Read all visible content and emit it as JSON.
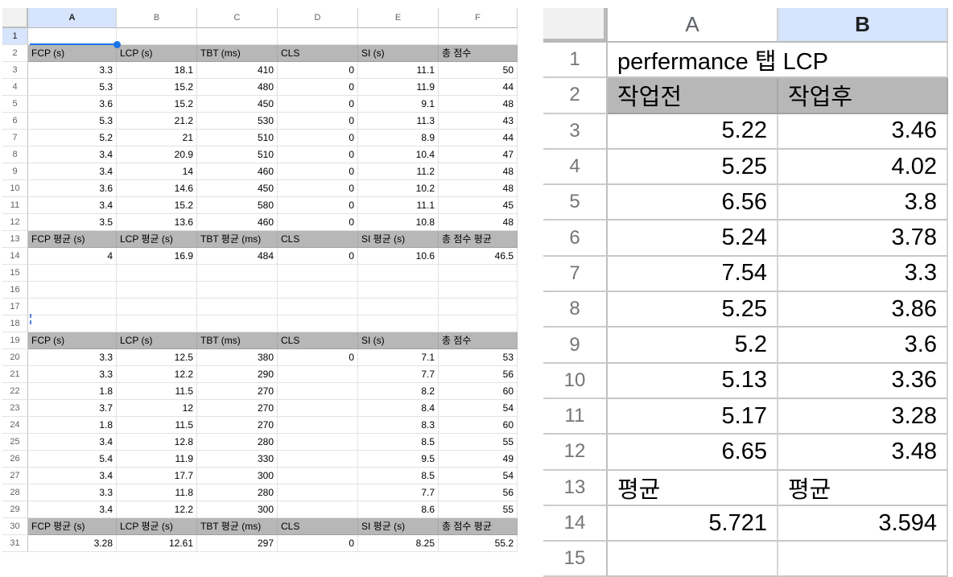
{
  "accent": {
    "selection_blue": "#1a73e8",
    "selected_header_bg": "#d6e4fc",
    "gray_header_bg": "#b7b7b7"
  },
  "left_sheet": {
    "columns": [
      "A",
      "B",
      "C",
      "D",
      "E",
      "F"
    ],
    "selected_column": "A",
    "selected_row": "1",
    "rows": [
      {
        "n": "1",
        "c": [
          "",
          "",
          "",
          "",
          "",
          ""
        ],
        "selRow": true
      },
      {
        "n": "2",
        "c": [
          "FCP (s)",
          "LCP (s)",
          "TBT (ms)",
          "CLS",
          "SI (s)",
          "총 점수"
        ],
        "h": true
      },
      {
        "n": "3",
        "c": [
          "3.3",
          "18.1",
          "410",
          "0",
          "11.1",
          "50"
        ]
      },
      {
        "n": "4",
        "c": [
          "5.3",
          "15.2",
          "480",
          "0",
          "11.9",
          "44"
        ]
      },
      {
        "n": "5",
        "c": [
          "3.6",
          "15.2",
          "450",
          "0",
          "9.1",
          "48"
        ]
      },
      {
        "n": "6",
        "c": [
          "5.3",
          "21.2",
          "530",
          "0",
          "11.3",
          "43"
        ]
      },
      {
        "n": "7",
        "c": [
          "5.2",
          "21",
          "510",
          "0",
          "8.9",
          "44"
        ]
      },
      {
        "n": "8",
        "c": [
          "3.4",
          "20.9",
          "510",
          "0",
          "10.4",
          "47"
        ]
      },
      {
        "n": "9",
        "c": [
          "3.4",
          "14",
          "460",
          "0",
          "11.2",
          "48"
        ]
      },
      {
        "n": "10",
        "c": [
          "3.6",
          "14.6",
          "450",
          "0",
          "10.2",
          "48"
        ]
      },
      {
        "n": "11",
        "c": [
          "3.4",
          "15.2",
          "580",
          "0",
          "11.1",
          "45"
        ]
      },
      {
        "n": "12",
        "c": [
          "3.5",
          "13.6",
          "460",
          "0",
          "10.8",
          "48"
        ]
      },
      {
        "n": "13",
        "c": [
          "FCP 평균 (s)",
          "LCP 평균 (s)",
          "TBT 평균 (ms)",
          "CLS",
          "SI 평균 (s)",
          "총 점수 평균"
        ],
        "h": true
      },
      {
        "n": "14",
        "c": [
          "4",
          "16.9",
          "484",
          "0",
          "10.6",
          "46.5"
        ]
      },
      {
        "n": "15",
        "c": [
          "",
          "",
          "",
          "",
          "",
          ""
        ]
      },
      {
        "n": "16",
        "c": [
          "",
          "",
          "",
          "",
          "",
          ""
        ]
      },
      {
        "n": "17",
        "c": [
          "",
          "",
          "",
          "",
          "",
          ""
        ]
      },
      {
        "n": "18",
        "c": [
          "",
          "",
          "",
          "",
          "",
          ""
        ],
        "cursor": true
      },
      {
        "n": "19",
        "c": [
          "FCP (s)",
          "LCP (s)",
          "TBT (ms)",
          "CLS",
          "SI (s)",
          "총 점수"
        ],
        "h": true
      },
      {
        "n": "20",
        "c": [
          "3.3",
          "12.5",
          "380",
          "0",
          "7.1",
          "53"
        ]
      },
      {
        "n": "21",
        "c": [
          "3.3",
          "12.2",
          "290",
          "",
          "7.7",
          "56"
        ]
      },
      {
        "n": "22",
        "c": [
          "1.8",
          "11.5",
          "270",
          "",
          "8.2",
          "60"
        ]
      },
      {
        "n": "23",
        "c": [
          "3.7",
          "12",
          "270",
          "",
          "8.4",
          "54"
        ]
      },
      {
        "n": "24",
        "c": [
          "1.8",
          "11.5",
          "270",
          "",
          "8.3",
          "60"
        ]
      },
      {
        "n": "25",
        "c": [
          "3.4",
          "12.8",
          "280",
          "",
          "8.5",
          "55"
        ]
      },
      {
        "n": "26",
        "c": [
          "5.4",
          "11.9",
          "330",
          "",
          "9.5",
          "49"
        ]
      },
      {
        "n": "27",
        "c": [
          "3.4",
          "17.7",
          "300",
          "",
          "8.5",
          "54"
        ]
      },
      {
        "n": "28",
        "c": [
          "3.3",
          "11.8",
          "280",
          "",
          "7.7",
          "56"
        ]
      },
      {
        "n": "29",
        "c": [
          "3.4",
          "12.2",
          "300",
          "",
          "8.6",
          "55"
        ]
      },
      {
        "n": "30",
        "c": [
          "FCP 평균 (s)",
          "LCP 평균 (s)",
          "TBT 평균 (ms)",
          "CLS",
          "SI 평균 (s)",
          "총 점수 평균"
        ],
        "h": true
      },
      {
        "n": "31",
        "c": [
          "3.28",
          "12.61",
          "297",
          "0",
          "8.25",
          "55.2"
        ]
      }
    ]
  },
  "right_sheet": {
    "columns": [
      "A",
      "B"
    ],
    "selected_column": "B",
    "rows": [
      {
        "n": "1",
        "c": [
          "perfermance 탭 LCP"
        ],
        "span": true
      },
      {
        "n": "2",
        "c": [
          "작업전",
          "작업후"
        ],
        "h": true
      },
      {
        "n": "3",
        "c": [
          "5.22",
          "3.46"
        ]
      },
      {
        "n": "4",
        "c": [
          "5.25",
          "4.02"
        ]
      },
      {
        "n": "5",
        "c": [
          "6.56",
          "3.8"
        ]
      },
      {
        "n": "6",
        "c": [
          "5.24",
          "3.78"
        ]
      },
      {
        "n": "7",
        "c": [
          "7.54",
          "3.3"
        ]
      },
      {
        "n": "8",
        "c": [
          "5.25",
          "3.86"
        ]
      },
      {
        "n": "9",
        "c": [
          "5.2",
          "3.6"
        ]
      },
      {
        "n": "10",
        "c": [
          "5.13",
          "3.36"
        ]
      },
      {
        "n": "11",
        "c": [
          "5.17",
          "3.28"
        ]
      },
      {
        "n": "12",
        "c": [
          "6.65",
          "3.48"
        ]
      },
      {
        "n": "13",
        "c": [
          "평균",
          "평균"
        ],
        "txt": true
      },
      {
        "n": "14",
        "c": [
          "5.721",
          "3.594"
        ]
      },
      {
        "n": "15",
        "c": [
          "",
          ""
        ],
        "partial": true
      }
    ]
  }
}
